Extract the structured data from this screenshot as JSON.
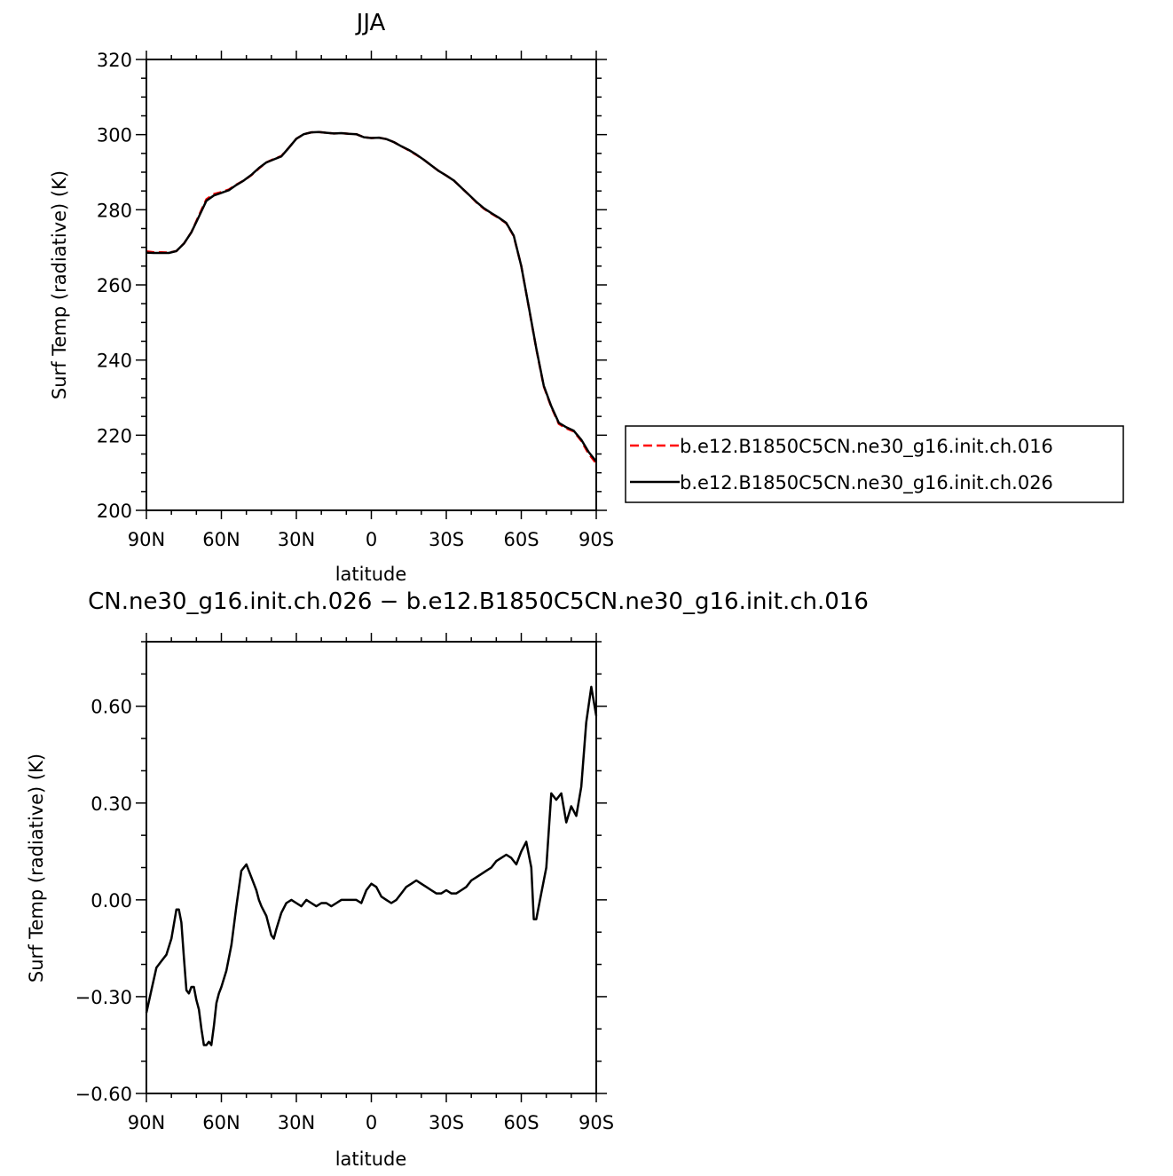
{
  "colors": {
    "series_a": "#ff0000",
    "series_b": "#000000"
  },
  "chart_data": [
    {
      "type": "line",
      "title": "JJA",
      "xlabel": "latitude",
      "ylabel": "Surf Temp (radiative) (K)",
      "xlim": [
        90,
        -90
      ],
      "ylim": [
        200,
        320
      ],
      "xticks": [
        {
          "value": 90,
          "label": "90N"
        },
        {
          "value": 60,
          "label": "60N"
        },
        {
          "value": 30,
          "label": "30N"
        },
        {
          "value": 0,
          "label": "0"
        },
        {
          "value": -30,
          "label": "30S"
        },
        {
          "value": -60,
          "label": "60S"
        },
        {
          "value": -90,
          "label": "90S"
        }
      ],
      "yticks": [
        {
          "value": 200,
          "label": "200"
        },
        {
          "value": 220,
          "label": "220"
        },
        {
          "value": 240,
          "label": "240"
        },
        {
          "value": 260,
          "label": "260"
        },
        {
          "value": 280,
          "label": "280"
        },
        {
          "value": 300,
          "label": "300"
        },
        {
          "value": 320,
          "label": "320"
        }
      ],
      "legend": {
        "position": "right"
      },
      "x": [
        90,
        87,
        84,
        81,
        78,
        75,
        72,
        69,
        66,
        63,
        60,
        57,
        54,
        51,
        48,
        45,
        42,
        39,
        36,
        33,
        30,
        27,
        24,
        21,
        18,
        15,
        12,
        9,
        6,
        3,
        0,
        -3,
        -6,
        -9,
        -12,
        -15,
        -18,
        -21,
        -24,
        -27,
        -30,
        -33,
        -36,
        -39,
        -42,
        -45,
        -48,
        -51,
        -54,
        -57,
        -60,
        -63,
        -66,
        -69,
        -72,
        -75,
        -78,
        -81,
        -84,
        -87,
        -90
      ],
      "series": [
        {
          "name": "b.e12.B1850C5CN.ne30_g16.init.ch.016",
          "style": "dashed",
          "color": "#ff0000",
          "values": [
            268.9,
            268.7,
            268.7,
            268.6,
            269.0,
            271.0,
            274.0,
            278.5,
            282.8,
            284.2,
            284.7,
            285.4,
            286.7,
            287.8,
            289.2,
            291.0,
            292.6,
            293.5,
            294.3,
            296.5,
            298.9,
            300.1,
            300.6,
            300.7,
            300.5,
            300.3,
            300.4,
            300.2,
            300.1,
            299.3,
            299.1,
            299.2,
            298.8,
            298.0,
            296.9,
            295.8,
            294.6,
            293.3,
            291.8,
            290.3,
            289.1,
            287.8,
            285.9,
            284.0,
            282.0,
            280.3,
            279.0,
            277.8,
            276.4,
            273.0,
            265.0,
            254.0,
            243.0,
            233.0,
            227.5,
            223.0,
            221.8,
            221.0,
            218.5,
            215.0,
            212.5
          ]
        },
        {
          "name": "b.e12.B1850C5CN.ne30_g16.init.ch.026",
          "style": "solid",
          "color": "#000000",
          "values": [
            268.6,
            268.5,
            268.5,
            268.5,
            269.0,
            271.0,
            274.0,
            278.2,
            282.4,
            283.8,
            284.5,
            285.2,
            286.6,
            287.8,
            289.3,
            291.1,
            292.6,
            293.4,
            294.2,
            296.5,
            298.9,
            300.1,
            300.6,
            300.7,
            300.5,
            300.3,
            300.4,
            300.2,
            300.1,
            299.3,
            299.1,
            299.2,
            298.8,
            298.0,
            296.9,
            295.9,
            294.7,
            293.3,
            291.8,
            290.3,
            289.1,
            287.8,
            285.9,
            284.0,
            282.1,
            280.4,
            279.1,
            277.9,
            276.5,
            273.1,
            265.0,
            254.1,
            243.1,
            233.2,
            227.7,
            223.3,
            222.1,
            221.2,
            218.8,
            215.5,
            213.0
          ]
        }
      ]
    },
    {
      "type": "line",
      "title": "CN.ne30_g16.init.ch.026 − b.e12.B1850C5CN.ne30_g16.init.ch.016",
      "xlabel": "latitude",
      "ylabel": "Surf Temp (radiative) (K)",
      "xlim": [
        90,
        -90
      ],
      "ylim": [
        -0.6,
        0.8
      ],
      "xticks": [
        {
          "value": 90,
          "label": "90N"
        },
        {
          "value": 60,
          "label": "60N"
        },
        {
          "value": 30,
          "label": "30N"
        },
        {
          "value": 0,
          "label": "0"
        },
        {
          "value": -30,
          "label": "30S"
        },
        {
          "value": -60,
          "label": "60S"
        },
        {
          "value": -90,
          "label": "90S"
        }
      ],
      "yticks": [
        {
          "value": -0.6,
          "label": "−0.60"
        },
        {
          "value": -0.3,
          "label": "−0.30"
        },
        {
          "value": 0.0,
          "label": "0.00"
        },
        {
          "value": 0.3,
          "label": "0.30"
        },
        {
          "value": 0.6,
          "label": "0.60"
        }
      ],
      "x": [
        90,
        88,
        86,
        84,
        82,
        80,
        78,
        77,
        76,
        75,
        74,
        73,
        72,
        71,
        70,
        69,
        68,
        67,
        66,
        65,
        64,
        63,
        62,
        61,
        60,
        58,
        56,
        54,
        52,
        50,
        48,
        47,
        46,
        45,
        44,
        42,
        40,
        39,
        38,
        36,
        34,
        32,
        30,
        28,
        26,
        24,
        22,
        20,
        18,
        16,
        14,
        12,
        10,
        8,
        6,
        4,
        2,
        0,
        -2,
        -4,
        -6,
        -8,
        -10,
        -12,
        -14,
        -16,
        -18,
        -20,
        -22,
        -24,
        -26,
        -28,
        -30,
        -32,
        -34,
        -36,
        -38,
        -40,
        -42,
        -44,
        -46,
        -48,
        -50,
        -52,
        -54,
        -56,
        -58,
        -60,
        -62,
        -64,
        -65,
        -66,
        -68,
        -70,
        -72,
        -74,
        -76,
        -78,
        -80,
        -82,
        -84,
        -86,
        -88,
        -90
      ],
      "series": [
        {
          "name": "",
          "style": "solid",
          "color": "#000000",
          "values": [
            -0.35,
            -0.28,
            -0.21,
            -0.19,
            -0.17,
            -0.12,
            -0.03,
            -0.03,
            -0.07,
            -0.18,
            -0.28,
            -0.29,
            -0.27,
            -0.27,
            -0.31,
            -0.34,
            -0.4,
            -0.45,
            -0.45,
            -0.44,
            -0.45,
            -0.39,
            -0.32,
            -0.29,
            -0.27,
            -0.22,
            -0.14,
            -0.02,
            0.09,
            0.11,
            0.07,
            0.05,
            0.03,
            0.0,
            -0.02,
            -0.05,
            -0.11,
            -0.12,
            -0.09,
            -0.04,
            -0.01,
            0.0,
            -0.01,
            -0.02,
            0.0,
            -0.01,
            -0.02,
            -0.01,
            -0.01,
            -0.02,
            -0.01,
            0.0,
            0.0,
            0.0,
            0.0,
            -0.01,
            0.03,
            0.05,
            0.04,
            0.01,
            0.0,
            -0.01,
            0.0,
            0.02,
            0.04,
            0.05,
            0.06,
            0.05,
            0.04,
            0.03,
            0.02,
            0.02,
            0.03,
            0.02,
            0.02,
            0.03,
            0.04,
            0.06,
            0.07,
            0.08,
            0.09,
            0.1,
            0.12,
            0.13,
            0.14,
            0.13,
            0.11,
            0.15,
            0.18,
            0.1,
            -0.06,
            -0.06,
            0.02,
            0.1,
            0.33,
            0.31,
            0.33,
            0.24,
            0.29,
            0.26,
            0.35,
            0.55,
            0.66,
            0.57
          ]
        }
      ]
    }
  ]
}
